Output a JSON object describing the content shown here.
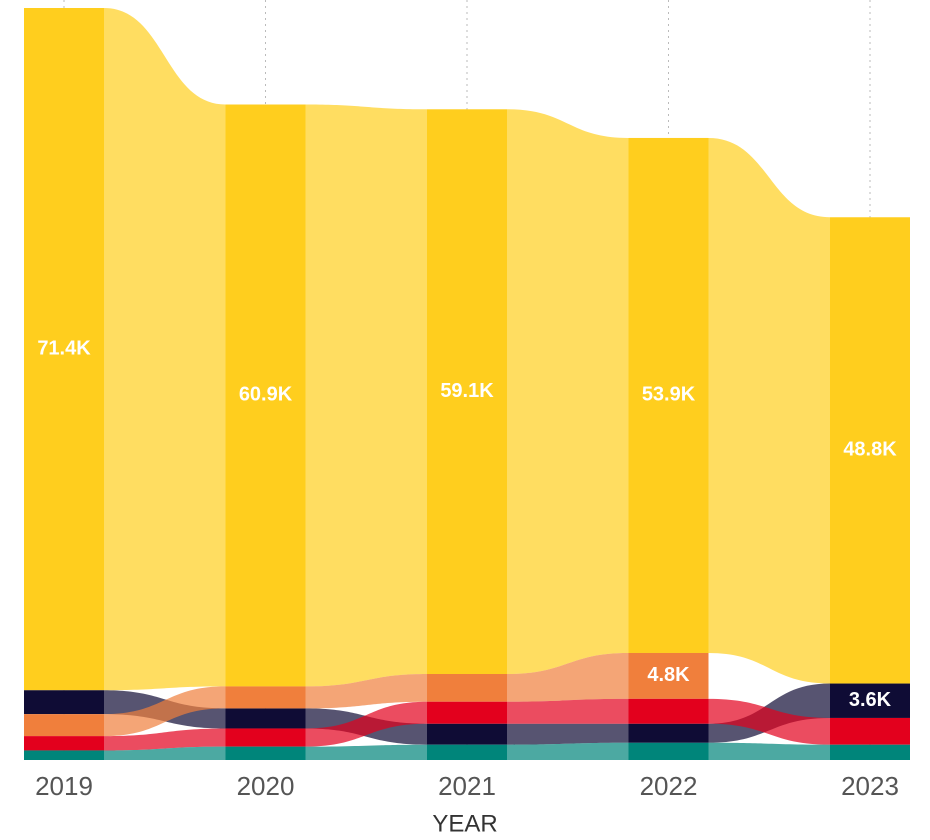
{
  "chart_data": {
    "type": "ribbon",
    "x_label": "YEAR",
    "categories": [
      "2019",
      "2020",
      "2021",
      "2022",
      "2023"
    ],
    "grid": true,
    "series": [
      {
        "color": "#FFCE1E",
        "values": [
          71400,
          60900,
          59100,
          53900,
          48800
        ],
        "value_labels": [
          "71.4K",
          "60.9K",
          "59.1K",
          "53.9K",
          "48.8K"
        ]
      },
      {
        "color": "#0F0C35",
        "values": [
          2500,
          2100,
          2200,
          2000,
          3600
        ],
        "value_labels": [
          null,
          null,
          null,
          null,
          "3.6K"
        ]
      },
      {
        "color": "#F07F3C",
        "values": [
          2300,
          2300,
          2900,
          4800,
          null
        ],
        "value_labels": [
          null,
          null,
          null,
          "4.8K",
          null
        ]
      },
      {
        "color": "#E3001D",
        "values": [
          1500,
          1900,
          2300,
          2600,
          2800
        ]
      },
      {
        "color": "#00857A",
        "values": [
          1000,
          1400,
          1600,
          1800,
          1600
        ]
      }
    ]
  }
}
